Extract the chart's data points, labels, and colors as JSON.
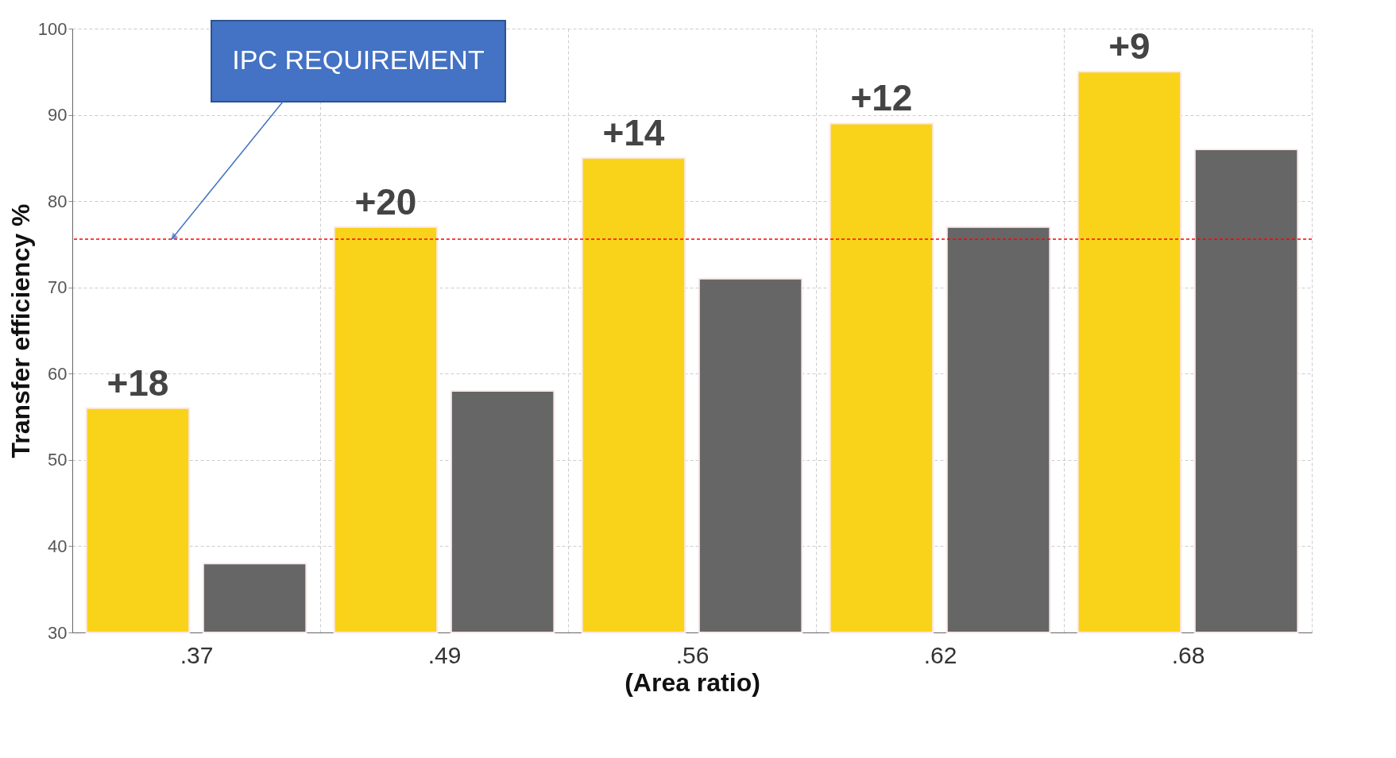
{
  "chart_data": {
    "type": "bar",
    "xlabel": "(Area ratio)",
    "ylabel": "Transfer efficiency %",
    "categories": [
      ".37",
      ".49",
      ".56",
      ".62",
      ".68"
    ],
    "series": [
      {
        "color": "#f9d319",
        "values": [
          56,
          77,
          85,
          89,
          95
        ]
      },
      {
        "color": "#666666",
        "values": [
          38,
          58,
          71,
          77,
          86
        ]
      }
    ],
    "annotations": [
      "+18",
      "+20",
      "+14",
      "+12",
      "+9"
    ],
    "ylim": [
      30,
      100
    ],
    "yticks": [
      30,
      40,
      50,
      60,
      70,
      80,
      90,
      100
    ],
    "grid": true,
    "ref_lines": [
      {
        "axis": "y",
        "value": 75.6,
        "label": "IPC REQUIREMENT",
        "color": "#ff0000",
        "line_style": "dashed"
      }
    ]
  }
}
